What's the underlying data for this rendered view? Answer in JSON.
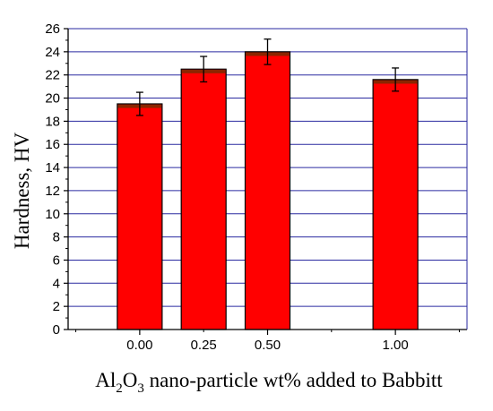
{
  "chart_data": {
    "type": "bar",
    "x_categories_numeric": [
      0.0,
      0.25,
      0.5,
      1.0
    ],
    "categories": [
      "0.00",
      "0.25",
      "0.50",
      "1.00"
    ],
    "values": [
      19.5,
      22.5,
      24.0,
      21.6
    ],
    "error": [
      1.0,
      1.1,
      1.1,
      1.0
    ],
    "title": "",
    "xlabel": {
      "prefix": "Al",
      "sub1": "2",
      "mid": "O",
      "sub2": "3",
      "suffix": " nano-particle wt% added to Babbitt"
    },
    "ylabel": "Hardness, HV",
    "ylim": [
      0,
      26
    ],
    "yticks": [
      "0",
      "2",
      "4",
      "6",
      "8",
      "10",
      "12",
      "14",
      "16",
      "18",
      "20",
      "22",
      "24",
      "26"
    ],
    "grid": true,
    "legend": "none",
    "colors": {
      "bar": "#ff0000",
      "bar_top": "#8b2500",
      "grid": "#2a2aa0",
      "axis": "#000000"
    }
  }
}
